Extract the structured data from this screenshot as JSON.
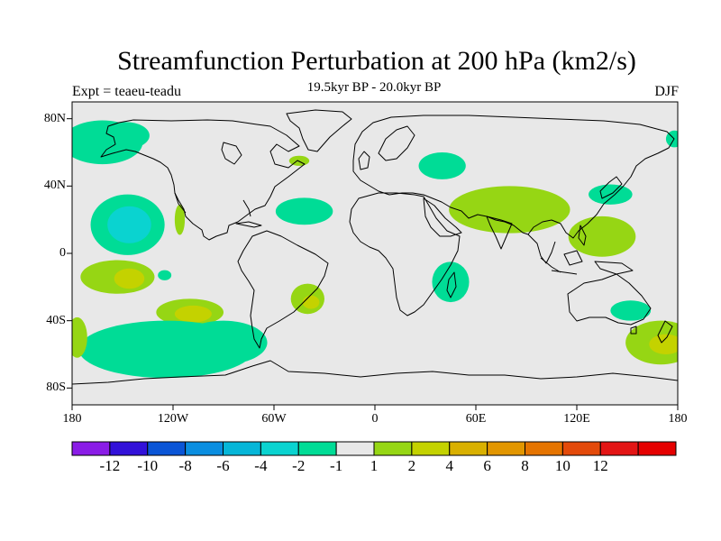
{
  "title": "Streamfunction Perturbation at 200 hPa (km2/s)",
  "subtitle": "19.5kyr BP - 20.0kyr BP",
  "left_label": "Expt = teaeu-teadu",
  "right_label": "DJF",
  "map": {
    "projection": "cylindrical-equidistant",
    "lon_range": [
      -180,
      180
    ],
    "lat_range": [
      -90,
      90
    ],
    "background_color": "#e8e8e8",
    "coastline_color": "#000000",
    "lat_ticks": [
      {
        "value": 80,
        "label": "80N"
      },
      {
        "value": 40,
        "label": "40N"
      },
      {
        "value": 0,
        "label": "0"
      },
      {
        "value": -40,
        "label": "40S"
      },
      {
        "value": -80,
        "label": "80S"
      }
    ],
    "lon_ticks": [
      {
        "value": -180,
        "label": "180"
      },
      {
        "value": -120,
        "label": "120W"
      },
      {
        "value": -60,
        "label": "60W"
      },
      {
        "value": 0,
        "label": "0"
      },
      {
        "value": 60,
        "label": "60E"
      },
      {
        "value": 120,
        "label": "120E"
      },
      {
        "value": 180,
        "label": "180"
      }
    ]
  },
  "colorbar": {
    "colors": [
      "#8a1ce6",
      "#3211d9",
      "#0a55d6",
      "#0a8ee0",
      "#06b6d8",
      "#0ad3d0",
      "#00dc96",
      "#e8e8e8",
      "#96d614",
      "#c4d200",
      "#d9b000",
      "#e29600",
      "#e57400",
      "#e34a0a",
      "#e31515",
      "#e50000"
    ],
    "labels": [
      "-12",
      "-10",
      "-8",
      "-6",
      "-4",
      "-2",
      "-1",
      "1",
      "2",
      "4",
      "6",
      "8",
      "10",
      "12"
    ]
  },
  "contour_regions": [
    {
      "lon": -162,
      "lat": 66,
      "rlon": 24,
      "rlat": 13,
      "level": -1
    },
    {
      "lon": -148,
      "lat": 70,
      "rlon": 14,
      "rlat": 8,
      "level": -1
    },
    {
      "lon": 178,
      "lat": 68,
      "rlon": 5,
      "rlat": 5,
      "level": -1
    },
    {
      "lon": -45,
      "lat": 55,
      "rlon": 6,
      "rlat": 3,
      "level": 1
    },
    {
      "lon": 40,
      "lat": 52,
      "rlon": 14,
      "rlat": 8,
      "level": -1
    },
    {
      "lon": -147,
      "lat": 17,
      "rlon": 22,
      "rlat": 18,
      "level": -1
    },
    {
      "lon": -146,
      "lat": 17,
      "rlon": 13,
      "rlat": 11,
      "level": -2
    },
    {
      "lon": -116,
      "lat": 20,
      "rlon": 3,
      "rlat": 9,
      "level": 1
    },
    {
      "lon": -42,
      "lat": 25,
      "rlon": 17,
      "rlat": 8,
      "level": -1
    },
    {
      "lon": 80,
      "lat": 26,
      "rlon": 36,
      "rlat": 14,
      "level": 1
    },
    {
      "lon": 135,
      "lat": 10,
      "rlon": 20,
      "rlat": 12,
      "level": 1
    },
    {
      "lon": 140,
      "lat": 35,
      "rlon": 13,
      "rlat": 6,
      "level": -1
    },
    {
      "lon": -153,
      "lat": -14,
      "rlon": 22,
      "rlat": 10,
      "level": 1
    },
    {
      "lon": -146,
      "lat": -15,
      "rlon": 9,
      "rlat": 6,
      "level": 2
    },
    {
      "lon": -125,
      "lat": -13,
      "rlon": 4,
      "rlat": 3,
      "level": -1
    },
    {
      "lon": -110,
      "lat": -35,
      "rlon": 20,
      "rlat": 8,
      "level": 1
    },
    {
      "lon": -108,
      "lat": -36,
      "rlon": 11,
      "rlat": 5,
      "level": 2
    },
    {
      "lon": -40,
      "lat": -27,
      "rlon": 10,
      "rlat": 9,
      "level": 1
    },
    {
      "lon": -38,
      "lat": -29,
      "rlon": 5,
      "rlat": 4,
      "level": 2
    },
    {
      "lon": -124,
      "lat": -57,
      "rlon": 52,
      "rlat": 17,
      "level": -1
    },
    {
      "lon": -90,
      "lat": -53,
      "rlon": 26,
      "rlat": 13,
      "level": -1
    },
    {
      "lon": 45,
      "lat": -17,
      "rlon": 11,
      "rlat": 12,
      "level": -1
    },
    {
      "lon": 152,
      "lat": -34,
      "rlon": 12,
      "rlat": 6,
      "level": -1
    },
    {
      "lon": -177,
      "lat": -50,
      "rlon": 6,
      "rlat": 12,
      "level": 1
    },
    {
      "lon": 170,
      "lat": -53,
      "rlon": 21,
      "rlat": 13,
      "level": 1
    },
    {
      "lon": 173,
      "lat": -54,
      "rlon": 10,
      "rlat": 6,
      "level": 2
    }
  ]
}
